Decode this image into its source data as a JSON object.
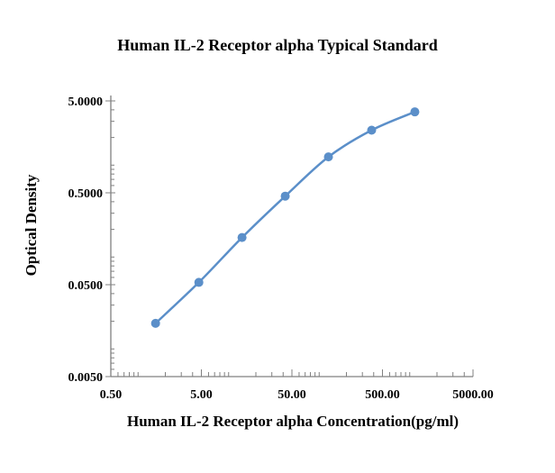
{
  "chart_data": {
    "type": "scatter",
    "title": "Human IL-2 Receptor alpha Typical Standard",
    "xlabel": "Human IL-2 Receptor alpha Concentration(pg/ml)",
    "ylabel": "Optical Density",
    "x_scale": "log",
    "y_scale": "log",
    "xlim": [
      0.5,
      5000
    ],
    "ylim": [
      0.005,
      5
    ],
    "x_ticks": [
      "0.50",
      "5.00",
      "50.00",
      "500.00",
      "5000.00"
    ],
    "x_tick_values": [
      0.5,
      5,
      50,
      500,
      5000
    ],
    "y_ticks": [
      "0.0050",
      "0.0500",
      "0.5000",
      "5.0000"
    ],
    "y_tick_values": [
      0.005,
      0.05,
      0.5,
      5
    ],
    "grid": false,
    "legend": "none",
    "series_color": "#5b8fc9",
    "series": [
      {
        "x": [
          1.56,
          4.69,
          14.06,
          42.19,
          126.56,
          379.69,
          1139.06
        ],
        "y": [
          0.019,
          0.053,
          0.163,
          0.46,
          1.23,
          2.4,
          3.8
        ],
        "line": "smooth",
        "markers": true
      }
    ]
  }
}
